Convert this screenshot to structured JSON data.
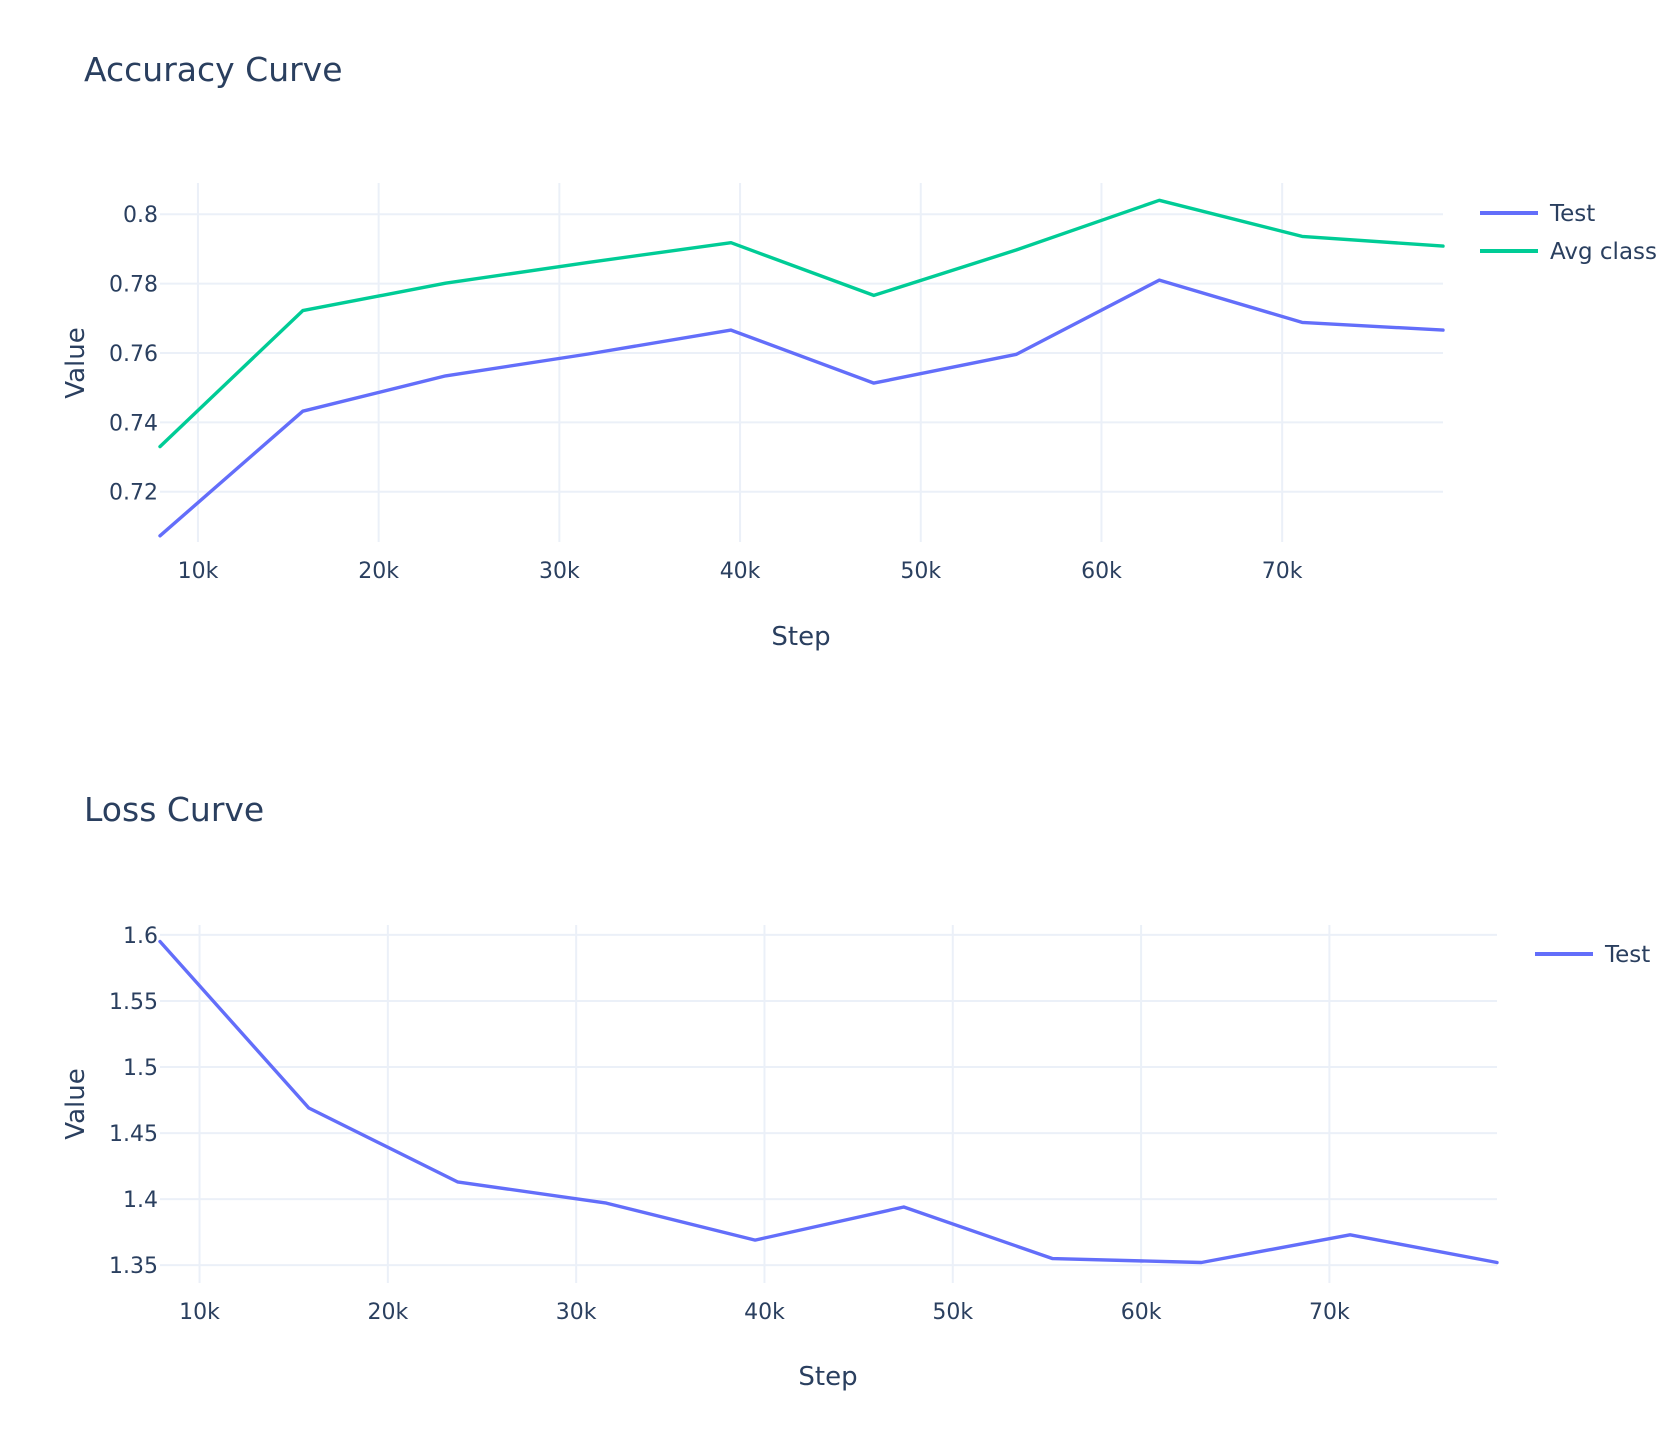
{
  "colors": {
    "test": "#636efa",
    "avg_class": "#00cc96",
    "text": "#2a3f5f",
    "grid": "#ebf0f8"
  },
  "chart_data": [
    {
      "type": "line",
      "title": "Accuracy Curve",
      "xlabel": "Step",
      "ylabel": "Value",
      "xlim": [
        7900,
        78900
      ],
      "ylim": [
        0.7055,
        0.809
      ],
      "xticks": [
        10000,
        20000,
        30000,
        40000,
        50000,
        60000,
        70000
      ],
      "xtick_labels": [
        "10k",
        "20k",
        "30k",
        "40k",
        "50k",
        "60k",
        "70k"
      ],
      "yticks": [
        0.72,
        0.74,
        0.76,
        0.78,
        0.8
      ],
      "ytick_labels": [
        "0.72",
        "0.74",
        "0.76",
        "0.78",
        "0.8"
      ],
      "grid": true,
      "legend_position": "top-right",
      "x": [
        7900,
        15800,
        23700,
        31600,
        39500,
        47400,
        55300,
        63200,
        71100,
        78900
      ],
      "series": [
        {
          "name": "Test",
          "color": "#636efa",
          "values": [
            0.7073,
            0.7432,
            0.7534,
            0.7597,
            0.7666,
            0.7513,
            0.7596,
            0.781,
            0.7688,
            0.7666
          ]
        },
        {
          "name": "Avg class",
          "color": "#00cc96",
          "values": [
            0.733,
            0.7722,
            0.7801,
            0.7861,
            0.7918,
            0.7766,
            0.7897,
            0.804,
            0.7936,
            0.7908
          ]
        }
      ]
    },
    {
      "type": "line",
      "title": "Loss Curve",
      "xlabel": "Step",
      "ylabel": "Value",
      "xlim": [
        7900,
        78900
      ],
      "ylim": [
        1.3365,
        1.6075
      ],
      "xticks": [
        10000,
        20000,
        30000,
        40000,
        50000,
        60000,
        70000
      ],
      "xtick_labels": [
        "10k",
        "20k",
        "30k",
        "40k",
        "50k",
        "60k",
        "70k"
      ],
      "yticks": [
        1.35,
        1.4,
        1.45,
        1.5,
        1.55,
        1.6
      ],
      "ytick_labels": [
        "1.35",
        "1.4",
        "1.45",
        "1.5",
        "1.55",
        "1.6"
      ],
      "grid": true,
      "legend_position": "top-right",
      "x": [
        7900,
        15800,
        23700,
        31600,
        39500,
        47400,
        55300,
        63200,
        71100,
        78900
      ],
      "series": [
        {
          "name": "Test",
          "color": "#636efa",
          "values": [
            1.595,
            1.469,
            1.413,
            1.397,
            1.369,
            1.394,
            1.355,
            1.352,
            1.373,
            1.352
          ]
        }
      ]
    }
  ]
}
